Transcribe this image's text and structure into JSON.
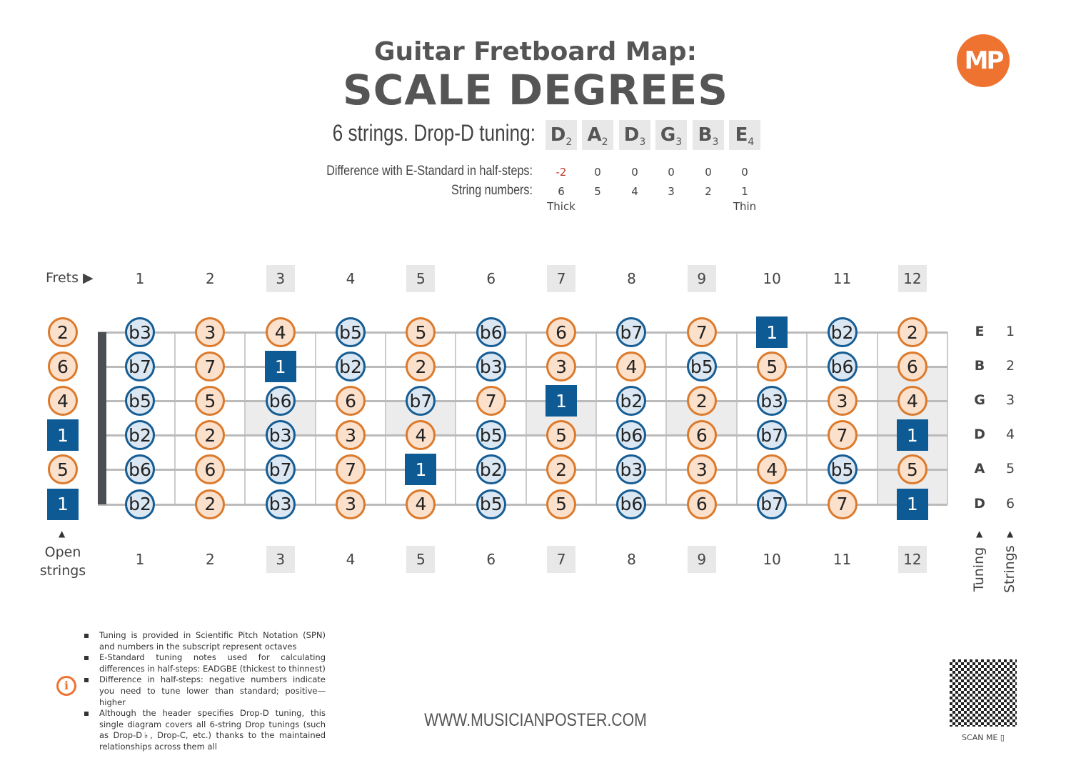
{
  "title": "Guitar Fretboard Map:",
  "subtitle": "SCALE DEGREES",
  "logo_text": "MP",
  "tuning": {
    "label": "6 strings. Drop-D tuning:",
    "notes": [
      {
        "n": "D",
        "o": "2"
      },
      {
        "n": "A",
        "o": "2"
      },
      {
        "n": "D",
        "o": "3"
      },
      {
        "n": "G",
        "o": "3"
      },
      {
        "n": "B",
        "o": "3"
      },
      {
        "n": "E",
        "o": "4"
      }
    ],
    "diff_label": "Difference with E-Standard in half-steps:",
    "diffs": [
      "-2",
      "0",
      "0",
      "0",
      "0",
      "0"
    ],
    "strnum_label": "String numbers:",
    "strnums": [
      "6",
      "5",
      "4",
      "3",
      "2",
      "1"
    ],
    "thick": "Thick",
    "thin": "Thin",
    "diff_negative_color": "#c0392b"
  },
  "frets_label": "Frets",
  "frets": [
    "1",
    "2",
    "3",
    "4",
    "5",
    "6",
    "7",
    "8",
    "9",
    "10",
    "11",
    "12"
  ],
  "open_label": "Open strings",
  "tuning_axis": "Tuning",
  "strings_axis": "Strings",
  "strings": [
    {
      "name": "E",
      "num": "1",
      "open": "2",
      "frets": [
        "b3",
        "3",
        "4",
        "b5",
        "5",
        "b6",
        "6",
        "b7",
        "7",
        "1",
        "b2",
        "2"
      ]
    },
    {
      "name": "B",
      "num": "2",
      "open": "6",
      "frets": [
        "b7",
        "7",
        "1",
        "b2",
        "2",
        "b3",
        "3",
        "4",
        "b5",
        "5",
        "b6",
        "6"
      ]
    },
    {
      "name": "G",
      "num": "3",
      "open": "4",
      "frets": [
        "b5",
        "5",
        "b6",
        "6",
        "b7",
        "7",
        "1",
        "b2",
        "2",
        "b3",
        "3",
        "4"
      ]
    },
    {
      "name": "D",
      "num": "4",
      "open": "1",
      "frets": [
        "b2",
        "2",
        "b3",
        "3",
        "4",
        "b5",
        "5",
        "b6",
        "6",
        "b7",
        "7",
        "1"
      ]
    },
    {
      "name": "A",
      "num": "5",
      "open": "5",
      "frets": [
        "b6",
        "6",
        "b7",
        "7",
        "1",
        "b2",
        "2",
        "b3",
        "3",
        "4",
        "b5",
        "5"
      ]
    },
    {
      "name": "D",
      "num": "6",
      "open": "1",
      "frets": [
        "b2",
        "2",
        "b3",
        "3",
        "4",
        "b5",
        "5",
        "b6",
        "6",
        "b7",
        "7",
        "1"
      ]
    }
  ],
  "colors": {
    "natural": "#dc7a2c",
    "flat": "#155d94",
    "root": "#0d5a94",
    "accent": "#ee7330"
  },
  "notes": [
    "Tuning is provided in Scientific Pitch Notation (SPN) and numbers in the subscript represent octaves",
    "E-Standard tuning notes used for calculating differences in half-steps: EADGBE (thickest to thinnest)",
    "Difference in half-steps: negative numbers indicate you need to tune lower than standard; positive—higher",
    "Although the header specifies Drop-D tuning, this single diagram covers all 6-string Drop tunings (such as Drop-D♭, Drop-C, etc.) thanks to the maintained relationships across them all"
  ],
  "website": "WWW.MUSICIANPOSTER.COM",
  "scan_label": "SCAN ME ▯"
}
